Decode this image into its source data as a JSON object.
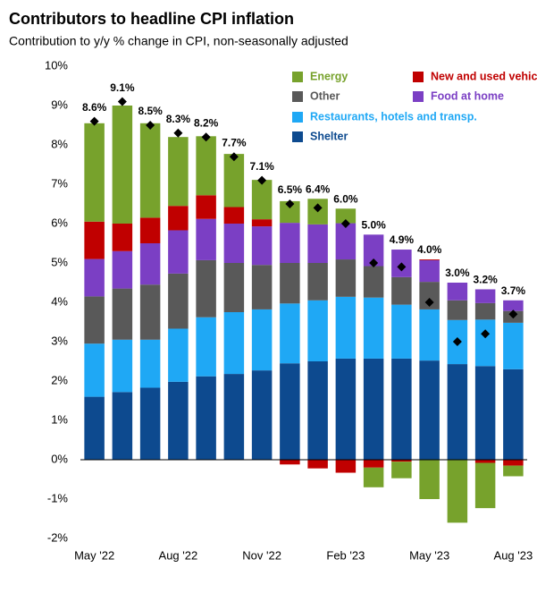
{
  "chart_data": {
    "type": "stacked_bar",
    "title": "Contributors to headline CPI inflation",
    "subtitle": "Contribution to y/y % change in CPI, non-seasonally adjusted",
    "categories": [
      "May '22",
      null,
      null,
      "Aug '22",
      null,
      null,
      "Nov '22",
      null,
      null,
      "Feb '23",
      null,
      null,
      "May '23",
      null,
      null,
      "Aug '23"
    ],
    "series": [
      {
        "name": "Shelter",
        "color": "#0d4a8f",
        "values": [
          1.6,
          1.72,
          1.83,
          1.98,
          2.12,
          2.18,
          2.27,
          2.45,
          2.5,
          2.57,
          2.57,
          2.57,
          2.52,
          2.43,
          2.38,
          2.3
        ]
      },
      {
        "name": "Restaurants, hotels and transp.",
        "color": "#1fa8f5",
        "values": [
          1.35,
          1.33,
          1.22,
          1.35,
          1.5,
          1.57,
          1.55,
          1.52,
          1.55,
          1.57,
          1.55,
          1.37,
          1.3,
          1.12,
          1.18,
          1.18
        ]
      },
      {
        "name": "Other",
        "color": "#595959",
        "values": [
          1.2,
          1.3,
          1.4,
          1.4,
          1.45,
          1.25,
          1.13,
          1.03,
          0.95,
          0.95,
          0.8,
          0.7,
          0.7,
          0.5,
          0.42,
          0.3
        ]
      },
      {
        "name": "Food at home",
        "color": "#7b3fc4",
        "values": [
          0.95,
          0.95,
          1.05,
          1.1,
          1.05,
          1.0,
          0.98,
          1.02,
          0.98,
          0.92,
          0.8,
          0.7,
          0.55,
          0.45,
          0.35,
          0.27
        ]
      },
      {
        "name": "New and used vehicles",
        "color": "#c00000",
        "values": [
          0.95,
          0.7,
          0.65,
          0.62,
          0.6,
          0.42,
          0.18,
          -0.12,
          -0.22,
          -0.33,
          -0.2,
          -0.05,
          0.02,
          0.0,
          -0.08,
          -0.15
        ]
      },
      {
        "name": "Energy",
        "color": "#77a22c",
        "values": [
          2.5,
          3.0,
          2.4,
          1.75,
          1.5,
          1.35,
          1.0,
          0.55,
          0.65,
          0.37,
          -0.5,
          -0.42,
          -1.0,
          -1.6,
          -1.15,
          -0.27
        ]
      }
    ],
    "markers": {
      "color": "#000000",
      "values": [
        8.6,
        9.1,
        8.5,
        8.3,
        8.2,
        7.7,
        7.1,
        6.5,
        6.4,
        6.0,
        5.0,
        4.9,
        4.0,
        3.0,
        3.2,
        3.7
      ],
      "value_labels": [
        "8.6%",
        "9.1%",
        "8.5%",
        "8.3%",
        "8.2%",
        "7.7%",
        "7.1%",
        "6.5%",
        "6.4%",
        "6.0%",
        "5.0%",
        "4.9%",
        "4.0%",
        "3.0%",
        "3.2%",
        "3.7%"
      ]
    },
    "ylim": [
      -2,
      10
    ],
    "yticks": [
      {
        "value": -2,
        "label": "-2%"
      },
      {
        "value": -1,
        "label": "-1%"
      },
      {
        "value": 0,
        "label": "0%"
      },
      {
        "value": 1,
        "label": "1%"
      },
      {
        "value": 2,
        "label": "2%"
      },
      {
        "value": 3,
        "label": "3%"
      },
      {
        "value": 4,
        "label": "4%"
      },
      {
        "value": 5,
        "label": "5%"
      },
      {
        "value": 6,
        "label": "6%"
      },
      {
        "value": 7,
        "label": "7%"
      },
      {
        "value": 8,
        "label": "8%"
      },
      {
        "value": 9,
        "label": "9%"
      },
      {
        "value": 10,
        "label": "10%"
      }
    ],
    "grid": false
  }
}
